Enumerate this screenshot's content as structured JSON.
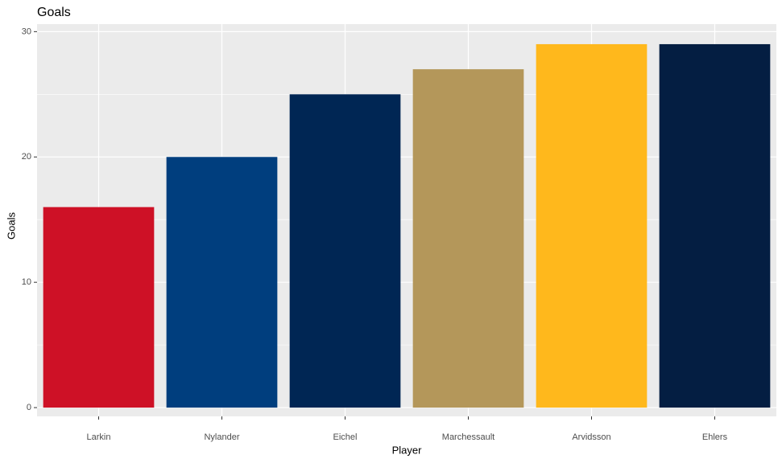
{
  "chart_data": {
    "type": "bar",
    "title": "Goals",
    "x_label": "Player",
    "y_label": "Goals",
    "categories": [
      "Larkin",
      "Nylander",
      "Eichel",
      "Marchessault",
      "Arvidsson",
      "Ehlers"
    ],
    "values": [
      16,
      20,
      25,
      27,
      29,
      29
    ],
    "colors": [
      "#ce1126",
      "#003e7e",
      "#002654",
      "#b4975a",
      "#ffb81c",
      "#041e42"
    ],
    "ylim": [
      -0.7,
      30.6
    ],
    "yticks": [
      0,
      10,
      20,
      30
    ],
    "y_minor_grid": [
      5,
      15,
      25
    ],
    "grid": true
  }
}
